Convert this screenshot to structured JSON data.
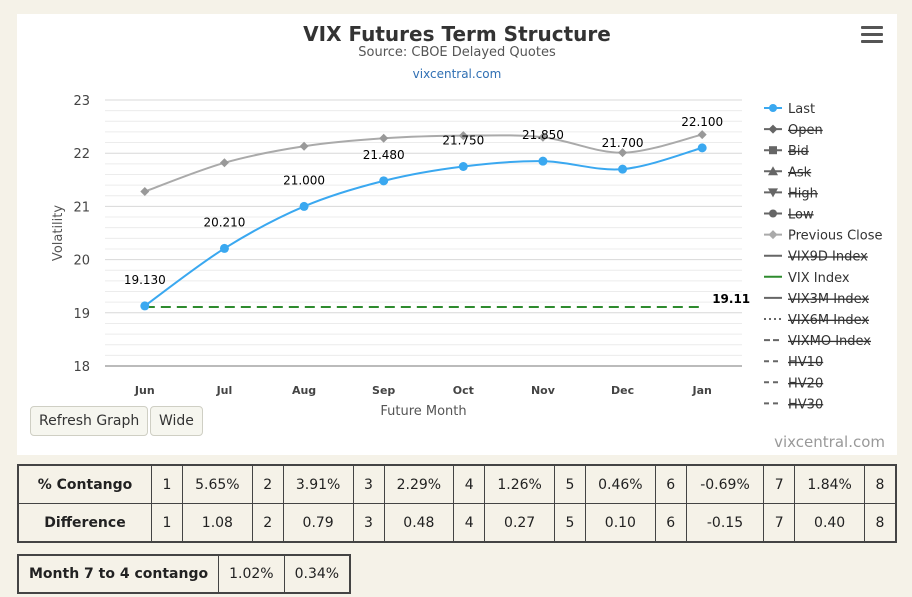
{
  "chart_title": "VIX Futures Term Structure",
  "chart_subtitle": "Source: CBOE Delayed Quotes",
  "site_link": "vixcentral.com",
  "credit": "vixcentral.com",
  "buttons": {
    "refresh": "Refresh Graph",
    "wide": "Wide"
  },
  "chart_data": {
    "type": "line",
    "xlabel": "Future Month",
    "ylabel": "Volatility",
    "categories": [
      "Jun",
      "Jul",
      "Aug",
      "Sep",
      "Oct",
      "Nov",
      "Dec",
      "Jan"
    ],
    "ylim": [
      18,
      23
    ],
    "yticks": [
      18,
      19,
      20,
      21,
      22,
      23
    ],
    "grid": true,
    "legend_position": "right",
    "series": [
      {
        "name": "Last",
        "values": [
          19.13,
          20.21,
          21.0,
          21.48,
          21.75,
          21.85,
          21.7,
          22.1
        ],
        "labels": [
          "19.130",
          "20.210",
          "21.000",
          "21.480",
          "21.750",
          "21.850",
          "21.700",
          "22.100"
        ],
        "color": "#3aa8f0"
      },
      {
        "name": "Previous Close",
        "values": [
          21.28,
          21.82,
          22.13,
          22.28,
          22.33,
          22.3,
          22.01,
          22.35
        ],
        "color": "#aaaaaa"
      },
      {
        "name": "VIX Index",
        "values": [
          19.11,
          19.11,
          19.11,
          19.11,
          19.11,
          19.11,
          19.11,
          19.11
        ],
        "end_label": "19.11",
        "color": "#2e8b2e"
      }
    ],
    "legend": [
      {
        "name": "Last",
        "active": true,
        "symbol": "circle",
        "color": "#3aa8f0"
      },
      {
        "name": "Open",
        "active": false,
        "symbol": "diamond",
        "color": "#666666"
      },
      {
        "name": "Bid",
        "active": false,
        "symbol": "square",
        "color": "#666666"
      },
      {
        "name": "Ask",
        "active": false,
        "symbol": "triangle",
        "color": "#666666"
      },
      {
        "name": "High",
        "active": false,
        "symbol": "triangle-down",
        "color": "#666666"
      },
      {
        "name": "Low",
        "active": false,
        "symbol": "circle",
        "color": "#666666"
      },
      {
        "name": "Previous Close",
        "active": true,
        "symbol": "diamond",
        "color": "#aaaaaa"
      },
      {
        "name": "VIX9D Index",
        "active": false,
        "symbol": "line",
        "color": "#666666"
      },
      {
        "name": "VIX Index",
        "active": true,
        "symbol": "line",
        "color": "#2e8b2e"
      },
      {
        "name": "VIX3M Index",
        "active": false,
        "symbol": "line",
        "color": "#666666"
      },
      {
        "name": "VIX6M Index",
        "active": false,
        "symbol": "dotted",
        "color": "#666666"
      },
      {
        "name": "VIXMO Index",
        "active": false,
        "symbol": "longdash",
        "color": "#666666"
      },
      {
        "name": "HV10",
        "active": false,
        "symbol": "dashdot",
        "color": "#666666"
      },
      {
        "name": "HV20",
        "active": false,
        "symbol": "dashdot",
        "color": "#666666"
      },
      {
        "name": "HV30",
        "active": false,
        "symbol": "dashdot",
        "color": "#666666"
      }
    ]
  },
  "contango_table": {
    "rows": [
      {
        "label": "% Contango",
        "cells": [
          "1",
          "5.65%",
          "2",
          "3.91%",
          "3",
          "2.29%",
          "4",
          "1.26%",
          "5",
          "0.46%",
          "6",
          "-0.69%",
          "7",
          "1.84%",
          "8"
        ]
      },
      {
        "label": "Difference",
        "cells": [
          "1",
          "1.08",
          "2",
          "0.79",
          "3",
          "0.48",
          "4",
          "0.27",
          "5",
          "0.10",
          "6",
          "-0.15",
          "7",
          "0.40",
          "8"
        ]
      }
    ]
  },
  "month74": {
    "label": "Month 7 to 4 contango",
    "value1": "1.02%",
    "value2": "0.34%"
  }
}
